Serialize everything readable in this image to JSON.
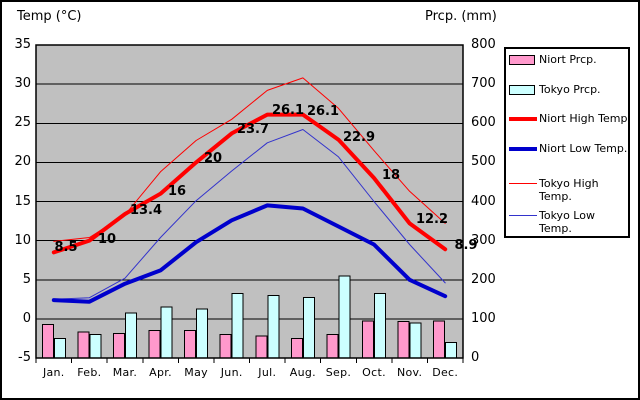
{
  "titles": {
    "left": "Temp (°C)",
    "right": "Prcp. (mm)"
  },
  "axes": {
    "left": {
      "ticks": [
        "35",
        "30",
        "25",
        "20",
        "15",
        "10",
        "5",
        "0",
        "-5"
      ]
    },
    "right": {
      "ticks": [
        "800",
        "700",
        "600",
        "500",
        "400",
        "300",
        "200",
        "100",
        "0"
      ]
    },
    "x": {
      "labels": [
        "Jan.",
        "Feb.",
        "Mar.",
        "Apr.",
        "May",
        "Jun.",
        "Jul.",
        "Aug.",
        "Sep.",
        "Oct.",
        "Nov.",
        "Dec."
      ]
    }
  },
  "data_labels": [
    "8.5",
    "10",
    "13.4",
    "16",
    "20",
    "23.7",
    "26.1",
    "26.1",
    "22.9",
    "18",
    "12.2",
    "8.9"
  ],
  "legend": [
    {
      "label": "Niort Prcp.",
      "swatch": "bar",
      "color": "#FF99CC",
      "label_lines": [
        "Niort Prcp."
      ]
    },
    {
      "label": "Tokyo Prcp.",
      "swatch": "bar",
      "color": "#CCFFFF",
      "label_lines": [
        "Tokyo Prcp."
      ]
    },
    {
      "label": "Niort High Temp.",
      "swatch": "line",
      "color": "#FF0000",
      "thickness": 4,
      "label_lines": [
        "Niort High Temp."
      ]
    },
    {
      "label": "Niort Low Temp.",
      "swatch": "line",
      "color": "#0000CC",
      "thickness": 4,
      "label_lines": [
        "Niort Low Temp."
      ]
    },
    {
      "label": "Tokyo High Temp.",
      "swatch": "line",
      "color": "#FF0000",
      "thickness": 1,
      "label_lines": [
        "Tokyo High",
        "Temp."
      ]
    },
    {
      "label": "Tokyo Low Temp.",
      "swatch": "line",
      "color": "#3333CC",
      "thickness": 1,
      "label_lines": [
        "Tokyo Low",
        "Temp."
      ]
    }
  ],
  "chart_data": {
    "type": "bar",
    "subtype": "combo-bar-line",
    "categories": [
      "Jan.",
      "Feb.",
      "Mar.",
      "Apr.",
      "May",
      "Jun.",
      "Jul.",
      "Aug.",
      "Sep.",
      "Oct.",
      "Nov.",
      "Dec."
    ],
    "left_axis": {
      "label": "Temp (°C)",
      "min": -5,
      "max": 35,
      "step": 5,
      "grid": true
    },
    "right_axis": {
      "label": "Prcp. (mm)",
      "min": 0,
      "max": 800,
      "step": 100,
      "grid": false
    },
    "plot_background": "#C0C0C0",
    "legend_position": "right",
    "series": [
      {
        "name": "Niort Prcp.",
        "type": "bar",
        "axis": "right",
        "color": "#FF99CC",
        "values": [
          85,
          66,
          63,
          70,
          70,
          60,
          56,
          50,
          60,
          95,
          93,
          95
        ]
      },
      {
        "name": "Tokyo Prcp.",
        "type": "bar",
        "axis": "right",
        "color": "#CCFFFF",
        "values": [
          50,
          60,
          115,
          130,
          125,
          165,
          160,
          155,
          210,
          165,
          90,
          40
        ]
      },
      {
        "name": "Niort High Temp.",
        "type": "line",
        "axis": "left",
        "color": "#FF0000",
        "width": 4,
        "values": [
          8.5,
          10,
          13.4,
          16,
          20,
          23.7,
          26.1,
          26.1,
          22.9,
          18,
          12.2,
          8.9
        ]
      },
      {
        "name": "Niort Low Temp.",
        "type": "line",
        "axis": "left",
        "color": "#0000CC",
        "width": 4,
        "values": [
          2.4,
          2.2,
          4.5,
          6.2,
          9.8,
          12.6,
          14.5,
          14.1,
          11.8,
          9.5,
          5.0,
          2.9
        ]
      },
      {
        "name": "Tokyo High Temp.",
        "type": "line",
        "axis": "left",
        "color": "#FF0000",
        "width": 1,
        "values": [
          9.9,
          10.4,
          13.3,
          18.8,
          22.8,
          25.5,
          29.2,
          30.8,
          26.9,
          21.5,
          16.3,
          12.2
        ]
      },
      {
        "name": "Tokyo Low Temp.",
        "type": "line",
        "axis": "left",
        "color": "#3333CC",
        "width": 1,
        "values": [
          2.5,
          2.7,
          5.2,
          10.4,
          15.1,
          18.9,
          22.5,
          24.2,
          20.7,
          15.0,
          9.5,
          4.6
        ]
      }
    ]
  }
}
